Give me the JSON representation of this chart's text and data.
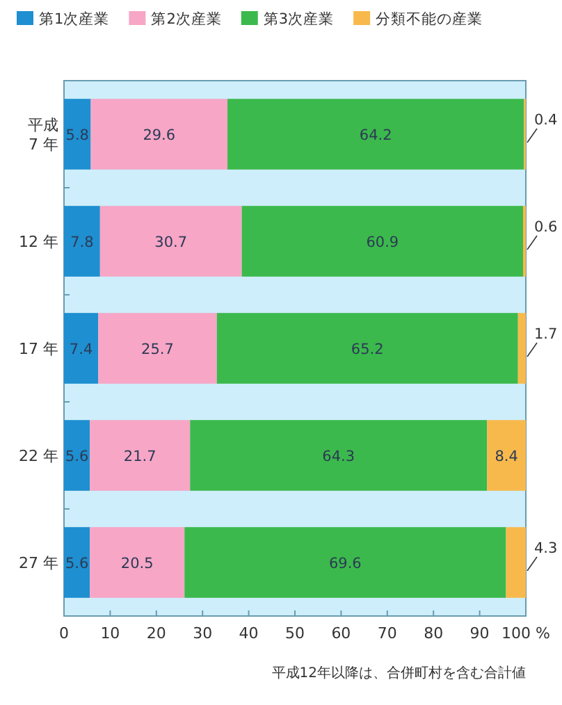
{
  "chart_data": {
    "type": "bar",
    "orientation": "horizontal",
    "stacked": true,
    "categories": [
      "平成\n7 年",
      "12 年",
      "17 年",
      "22 年",
      "27 年"
    ],
    "series": [
      {
        "name": "第1次産業",
        "color": "#1e8fd0",
        "values": [
          5.8,
          7.8,
          7.4,
          5.6,
          5.6
        ]
      },
      {
        "name": "第2次産業",
        "color": "#f7a6c6",
        "values": [
          29.6,
          30.7,
          25.7,
          21.7,
          20.5
        ]
      },
      {
        "name": "第3次産業",
        "color": "#3cb94c",
        "values": [
          64.2,
          60.9,
          65.2,
          64.3,
          69.6
        ]
      },
      {
        "name": "分類不能の産業",
        "color": "#f8b94c",
        "values": [
          0.4,
          0.6,
          1.7,
          8.4,
          4.3
        ]
      }
    ],
    "xlim": [
      0,
      100
    ],
    "xticks": [
      0,
      10,
      20,
      30,
      40,
      50,
      60,
      70,
      80,
      90,
      {
        "value": 100,
        "label": "100 %"
      }
    ],
    "data_labels": true,
    "legend": "top",
    "grid": false,
    "annotations": [
      "平成12年以降は、合併町村を含む合計値"
    ]
  }
}
